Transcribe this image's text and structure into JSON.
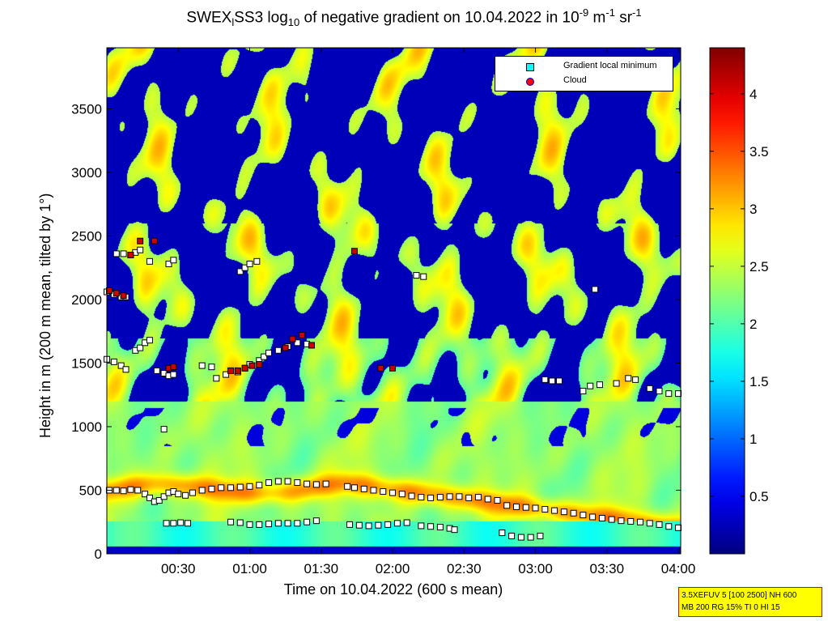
{
  "title": {
    "prefix": "SWEX",
    "sub1": "l",
    "mid": "SS3 log",
    "sub2": "10",
    "rest": " of negative gradient on 10.04.2022 in 10",
    "sup1": "-9",
    "unit1": " m",
    "sup2": "-1",
    "unit2": " sr",
    "sup3": "-1"
  },
  "chart_data": {
    "type": "heatmap",
    "xlabel": "Time on 10.04.2022 (600 s mean)",
    "ylabel": "Height in m (200 m mean, tilted by 1°)",
    "x_ticks": [
      "00:30",
      "01:00",
      "01:30",
      "02:00",
      "02:30",
      "03:00",
      "03:30",
      "04:00"
    ],
    "x_tick_minutes": [
      30,
      60,
      90,
      120,
      150,
      180,
      210,
      240
    ],
    "xlim_minutes": [
      0,
      241
    ],
    "y_ticks": [
      0,
      500,
      1000,
      1500,
      2000,
      2500,
      3000,
      3500
    ],
    "ylim": [
      0,
      3980
    ],
    "colorbar": {
      "ticks": [
        0.5,
        1,
        1.5,
        2,
        2.5,
        3,
        3.5,
        4
      ],
      "tick_labels": [
        "0.5",
        "1",
        "1.5",
        "2",
        "2.5",
        "3",
        "3.5",
        "4"
      ],
      "range": [
        0,
        4.4
      ],
      "colormap": "jet"
    },
    "legend": [
      {
        "label": "Gradient local minimum",
        "color": "#00ffff"
      },
      {
        "label": "Cloud",
        "color": "#ff0000"
      }
    ],
    "series": [
      {
        "name": "Gradient local minimum",
        "points": [
          [
            1,
            500
          ],
          [
            4,
            500
          ],
          [
            7,
            495
          ],
          [
            10,
            505
          ],
          [
            13,
            500
          ],
          [
            16,
            470
          ],
          [
            18,
            440
          ],
          [
            20,
            410
          ],
          [
            22,
            420
          ],
          [
            24,
            450
          ],
          [
            26,
            480
          ],
          [
            28,
            490
          ],
          [
            30,
            470
          ],
          [
            33,
            460
          ],
          [
            36,
            480
          ],
          [
            40,
            500
          ],
          [
            44,
            510
          ],
          [
            48,
            520
          ],
          [
            52,
            520
          ],
          [
            56,
            525
          ],
          [
            60,
            530
          ],
          [
            64,
            540
          ],
          [
            68,
            560
          ],
          [
            72,
            570
          ],
          [
            76,
            570
          ],
          [
            80,
            560
          ],
          [
            84,
            550
          ],
          [
            88,
            545
          ],
          [
            92,
            550
          ],
          [
            101,
            530
          ],
          [
            104,
            520
          ],
          [
            108,
            510
          ],
          [
            112,
            500
          ],
          [
            116,
            490
          ],
          [
            120,
            480
          ],
          [
            124,
            470
          ],
          [
            128,
            455
          ],
          [
            132,
            445
          ],
          [
            136,
            440
          ],
          [
            140,
            445
          ],
          [
            144,
            450
          ],
          [
            148,
            450
          ],
          [
            152,
            440
          ],
          [
            156,
            445
          ],
          [
            160,
            430
          ],
          [
            164,
            420
          ],
          [
            168,
            380
          ],
          [
            172,
            370
          ],
          [
            176,
            365
          ],
          [
            180,
            360
          ],
          [
            184,
            350
          ],
          [
            188,
            340
          ],
          [
            192,
            330
          ],
          [
            196,
            320
          ],
          [
            200,
            305
          ],
          [
            204,
            290
          ],
          [
            208,
            280
          ],
          [
            212,
            270
          ],
          [
            216,
            260
          ],
          [
            220,
            255
          ],
          [
            224,
            250
          ],
          [
            228,
            240
          ],
          [
            232,
            230
          ],
          [
            236,
            215
          ],
          [
            240,
            205
          ],
          [
            25,
            240
          ],
          [
            28,
            240
          ],
          [
            31,
            245
          ],
          [
            34,
            240
          ],
          [
            52,
            250
          ],
          [
            56,
            245
          ],
          [
            60,
            230
          ],
          [
            64,
            230
          ],
          [
            68,
            235
          ],
          [
            72,
            240
          ],
          [
            76,
            240
          ],
          [
            80,
            240
          ],
          [
            84,
            250
          ],
          [
            88,
            260
          ],
          [
            102,
            230
          ],
          [
            106,
            225
          ],
          [
            110,
            220
          ],
          [
            114,
            225
          ],
          [
            118,
            230
          ],
          [
            122,
            240
          ],
          [
            126,
            245
          ],
          [
            132,
            220
          ],
          [
            136,
            215
          ],
          [
            140,
            210
          ],
          [
            144,
            200
          ],
          [
            146,
            190
          ],
          [
            166,
            165
          ],
          [
            170,
            140
          ],
          [
            174,
            130
          ],
          [
            178,
            130
          ],
          [
            182,
            140
          ],
          [
            0,
            1530
          ],
          [
            3,
            1510
          ],
          [
            6,
            1480
          ],
          [
            8,
            1450
          ],
          [
            12,
            1600
          ],
          [
            14,
            1620
          ],
          [
            16,
            1660
          ],
          [
            18,
            1680
          ],
          [
            21,
            1440
          ],
          [
            24,
            1420
          ],
          [
            26,
            1400
          ],
          [
            28,
            1410
          ],
          [
            40,
            1480
          ],
          [
            44,
            1470
          ],
          [
            46,
            1380
          ],
          [
            50,
            1410
          ],
          [
            55,
            1430
          ],
          [
            58,
            1460
          ],
          [
            60,
            1490
          ],
          [
            64,
            1520
          ],
          [
            66,
            1550
          ],
          [
            68,
            1580
          ],
          [
            72,
            1600
          ],
          [
            76,
            1630
          ],
          [
            80,
            1660
          ],
          [
            84,
            1650
          ],
          [
            0,
            2060
          ],
          [
            3,
            2040
          ],
          [
            6,
            2020
          ],
          [
            8,
            2020
          ],
          [
            4,
            2360
          ],
          [
            7,
            2360
          ],
          [
            10,
            2350
          ],
          [
            12,
            2370
          ],
          [
            14,
            2390
          ],
          [
            18,
            2300
          ],
          [
            26,
            2280
          ],
          [
            28,
            2310
          ],
          [
            56,
            2220
          ],
          [
            58,
            2250
          ],
          [
            60,
            2280
          ],
          [
            63,
            2300
          ],
          [
            130,
            2190
          ],
          [
            133,
            2180
          ],
          [
            205,
            2080
          ],
          [
            24,
            980
          ],
          [
            184,
            1370
          ],
          [
            187,
            1360
          ],
          [
            190,
            1360
          ],
          [
            200,
            1280
          ],
          [
            203,
            1320
          ],
          [
            207,
            1330
          ],
          [
            214,
            1340
          ],
          [
            219,
            1380
          ],
          [
            222,
            1370
          ],
          [
            228,
            1300
          ],
          [
            232,
            1280
          ],
          [
            236,
            1260
          ],
          [
            240,
            1260
          ]
        ]
      },
      {
        "name": "Cloud",
        "points": [
          [
            1,
            2070
          ],
          [
            4,
            2050
          ],
          [
            7,
            2030
          ],
          [
            10,
            2350
          ],
          [
            14,
            2460
          ],
          [
            20,
            2460
          ],
          [
            26,
            1460
          ],
          [
            28,
            1470
          ],
          [
            52,
            1440
          ],
          [
            55,
            1440
          ],
          [
            58,
            1460
          ],
          [
            61,
            1480
          ],
          [
            64,
            1490
          ],
          [
            75,
            1620
          ],
          [
            78,
            1690
          ],
          [
            82,
            1720
          ],
          [
            86,
            1640
          ],
          [
            104,
            2380
          ],
          [
            115,
            1460
          ],
          [
            120,
            1460
          ]
        ]
      }
    ]
  },
  "infobox": {
    "line1": "3.5XEFUV 5 [100 2500] NH 600",
    "line2": "MB 200 RG 15% TI 0 HI 15"
  }
}
